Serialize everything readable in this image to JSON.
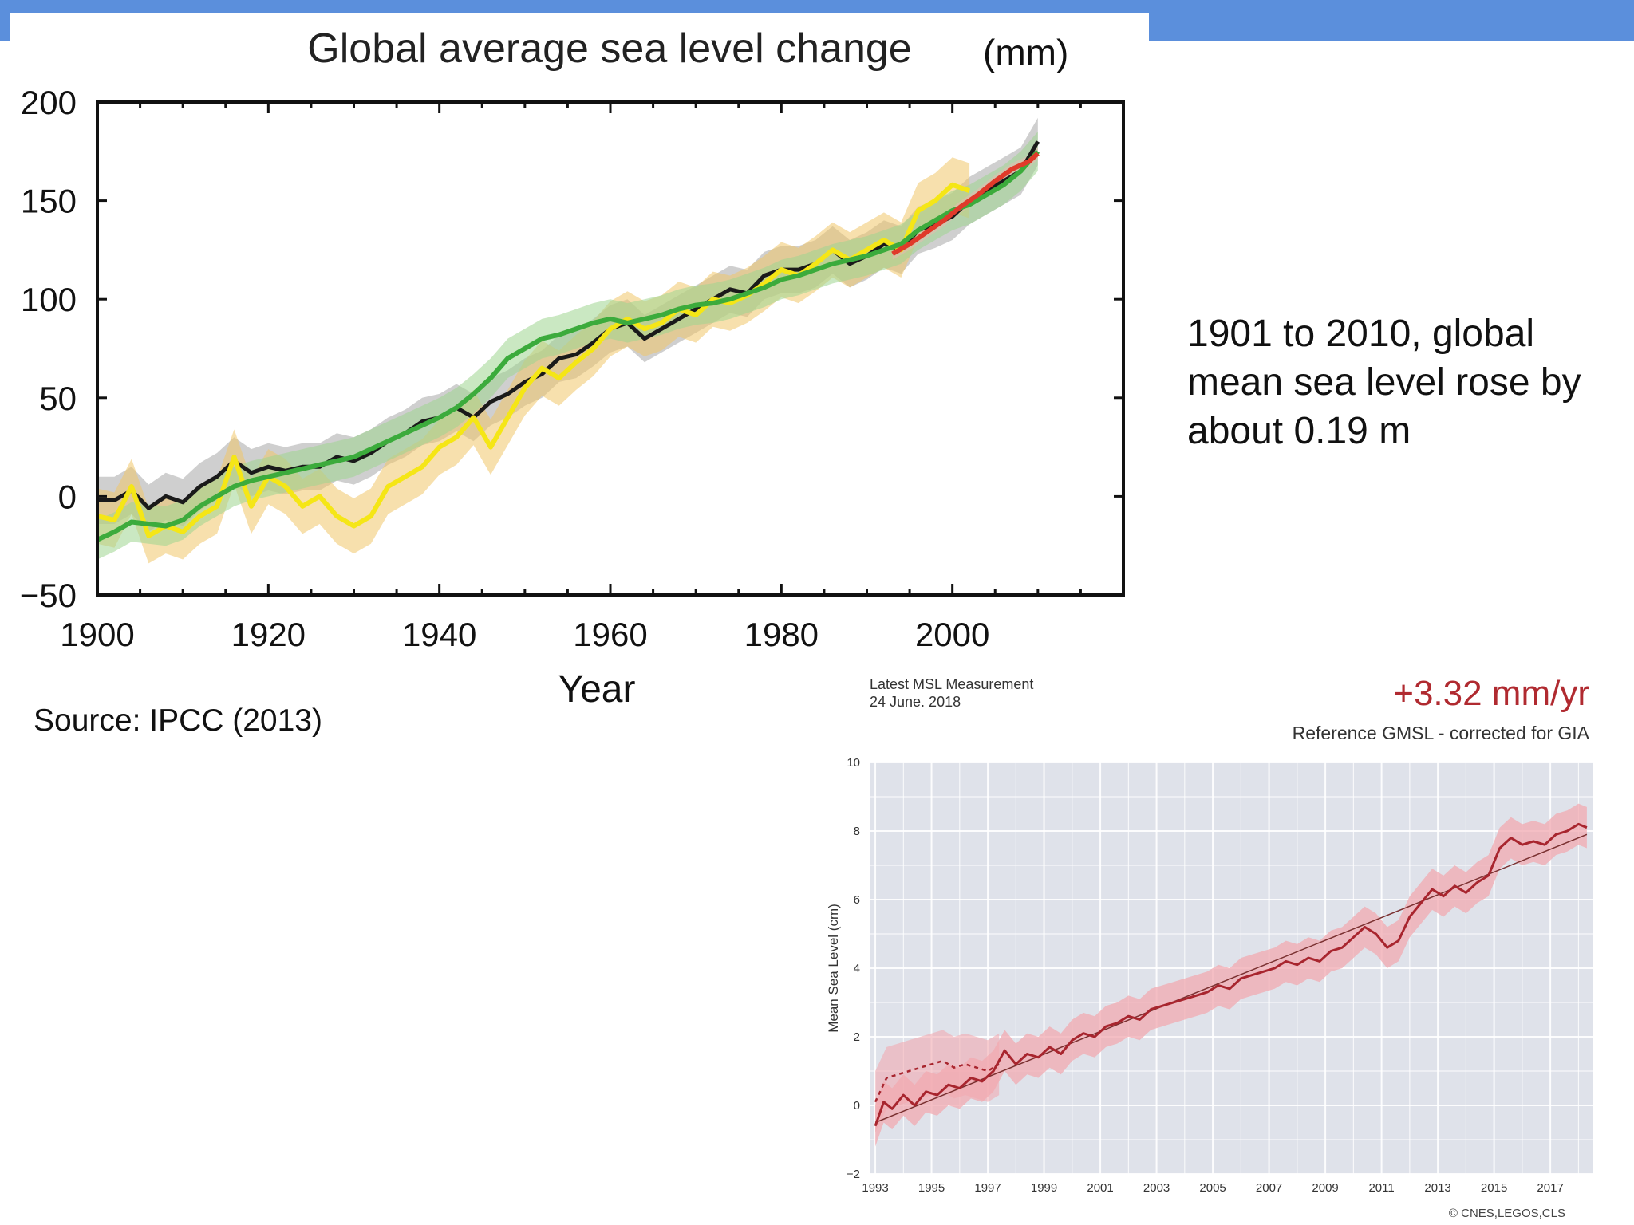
{
  "slide": {
    "note": "1901 to 2010, global mean sea level rose by about 0.19 m",
    "source": "Source: IPCC (2013)",
    "colors": {
      "topbar": "#5b8fdc"
    }
  },
  "chart_data": [
    {
      "type": "line",
      "title": "Global average sea level change",
      "unit": "(mm)",
      "xlabel": "Year",
      "ylabel": "",
      "xlim": [
        1900,
        2020
      ],
      "ylim": [
        -50,
        200
      ],
      "xticks": [
        1900,
        1920,
        1940,
        1960,
        1980,
        2000
      ],
      "yticks": [
        -50,
        0,
        50,
        100,
        150,
        200
      ],
      "grid": false,
      "series": [
        {
          "color": "#1a1a1a",
          "band_color": "#a8a8a8",
          "x": [
            1900,
            1902,
            1904,
            1906,
            1908,
            1910,
            1912,
            1914,
            1916,
            1918,
            1920,
            1922,
            1924,
            1926,
            1928,
            1930,
            1932,
            1934,
            1936,
            1938,
            1940,
            1942,
            1944,
            1946,
            1948,
            1950,
            1952,
            1954,
            1956,
            1958,
            1960,
            1962,
            1964,
            1966,
            1968,
            1970,
            1972,
            1974,
            1976,
            1978,
            1980,
            1982,
            1984,
            1986,
            1988,
            1990,
            1992,
            1994,
            1996,
            1998,
            2000,
            2002,
            2004,
            2006,
            2008,
            2010
          ],
          "y": [
            -2,
            -2,
            3,
            -6,
            0,
            -3,
            5,
            10,
            18,
            12,
            15,
            13,
            15,
            15,
            20,
            18,
            22,
            28,
            32,
            38,
            40,
            45,
            40,
            48,
            52,
            58,
            62,
            70,
            72,
            78,
            85,
            88,
            80,
            85,
            90,
            95,
            100,
            105,
            103,
            112,
            115,
            115,
            118,
            125,
            118,
            122,
            128,
            125,
            135,
            138,
            142,
            150,
            155,
            160,
            165,
            180
          ],
          "band": 12
        },
        {
          "color": "#f5e616",
          "band_color": "#f0c66a",
          "x": [
            1900,
            1902,
            1904,
            1906,
            1908,
            1910,
            1912,
            1914,
            1916,
            1918,
            1920,
            1922,
            1924,
            1926,
            1928,
            1930,
            1932,
            1934,
            1936,
            1938,
            1940,
            1942,
            1944,
            1946,
            1948,
            1950,
            1952,
            1954,
            1956,
            1958,
            1960,
            1962,
            1964,
            1966,
            1968,
            1970,
            1972,
            1974,
            1976,
            1978,
            1980,
            1982,
            1984,
            1986,
            1988,
            1990,
            1992,
            1994,
            1996,
            1998,
            2000,
            2002
          ],
          "y": [
            -10,
            -12,
            5,
            -20,
            -15,
            -18,
            -10,
            -5,
            20,
            -5,
            10,
            5,
            -5,
            0,
            -10,
            -15,
            -10,
            5,
            10,
            15,
            25,
            30,
            40,
            25,
            40,
            55,
            65,
            60,
            68,
            75,
            85,
            90,
            85,
            88,
            95,
            92,
            100,
            98,
            102,
            108,
            115,
            112,
            118,
            125,
            120,
            125,
            130,
            125,
            145,
            150,
            158,
            155
          ],
          "band": 14
        },
        {
          "color": "#3cab3c",
          "band_color": "#9fd68f",
          "x": [
            1900,
            1902,
            1904,
            1906,
            1908,
            1910,
            1912,
            1914,
            1916,
            1918,
            1920,
            1922,
            1924,
            1926,
            1928,
            1930,
            1932,
            1934,
            1936,
            1938,
            1940,
            1942,
            1944,
            1946,
            1948,
            1950,
            1952,
            1954,
            1956,
            1958,
            1960,
            1962,
            1964,
            1966,
            1968,
            1970,
            1972,
            1974,
            1976,
            1978,
            1980,
            1982,
            1984,
            1986,
            1988,
            1990,
            1992,
            1994,
            1996,
            1998,
            2000,
            2002,
            2004,
            2006,
            2008,
            2010
          ],
          "y": [
            -22,
            -18,
            -13,
            -14,
            -15,
            -12,
            -5,
            0,
            5,
            8,
            10,
            12,
            14,
            16,
            18,
            20,
            24,
            28,
            32,
            36,
            40,
            45,
            52,
            60,
            70,
            75,
            80,
            82,
            85,
            88,
            90,
            88,
            90,
            92,
            95,
            97,
            98,
            100,
            103,
            106,
            110,
            112,
            115,
            118,
            120,
            122,
            125,
            128,
            135,
            140,
            145,
            148,
            153,
            158,
            165,
            175
          ],
          "band": 10
        },
        {
          "color": "#e03a2a",
          "band_color": "#e8b9b0",
          "x": [
            1993,
            1995,
            1997,
            1999,
            2001,
            2003,
            2005,
            2007,
            2009,
            2010
          ],
          "y": [
            123,
            128,
            134,
            140,
            147,
            153,
            160,
            166,
            170,
            174
          ],
          "band": 3
        }
      ]
    },
    {
      "type": "line",
      "title": "",
      "header_left_1": "Latest MSL Measurement",
      "header_left_2": "24 June. 2018",
      "rate": "+3.32 mm/yr",
      "subtitle": "Reference GMSL - corrected for GIA",
      "ylabel": "Mean Sea Level (cm)",
      "xlabel": "",
      "credit": "© CNES,LEGOS,CLS",
      "xlim": [
        1992.8,
        2018.5
      ],
      "ylim": [
        -2,
        10
      ],
      "xticks": [
        1993,
        1995,
        1997,
        1999,
        2001,
        2003,
        2005,
        2007,
        2009,
        2011,
        2013,
        2015,
        2017
      ],
      "yticks": [
        -2,
        0,
        2,
        4,
        6,
        8,
        10
      ],
      "grid": true,
      "colors": {
        "line": "#a8252e",
        "band": "#f2aab0",
        "rate": "#b02a30",
        "background": "#dfe2ea",
        "trend": "#7a3030"
      },
      "series": {
        "x": [
          1993.0,
          1993.3,
          1993.6,
          1994.0,
          1994.4,
          1994.8,
          1995.2,
          1995.6,
          1996.0,
          1996.4,
          1996.8,
          1997.2,
          1997.6,
          1998.0,
          1998.4,
          1998.8,
          1999.2,
          1999.6,
          2000.0,
          2000.4,
          2000.8,
          2001.2,
          2001.6,
          2002.0,
          2002.4,
          2002.8,
          2003.2,
          2003.6,
          2004.0,
          2004.4,
          2004.8,
          2005.2,
          2005.6,
          2006.0,
          2006.4,
          2006.8,
          2007.2,
          2007.6,
          2008.0,
          2008.4,
          2008.8,
          2009.2,
          2009.6,
          2010.0,
          2010.4,
          2010.8,
          2011.2,
          2011.6,
          2012.0,
          2012.4,
          2012.8,
          2013.2,
          2013.6,
          2014.0,
          2014.4,
          2014.8,
          2015.2,
          2015.6,
          2016.0,
          2016.4,
          2016.8,
          2017.2,
          2017.6,
          2018.0,
          2018.3
        ],
        "y": [
          -0.6,
          0.1,
          -0.1,
          0.3,
          0.0,
          0.4,
          0.3,
          0.6,
          0.5,
          0.8,
          0.7,
          1.0,
          1.6,
          1.2,
          1.5,
          1.4,
          1.7,
          1.5,
          1.9,
          2.1,
          2.0,
          2.3,
          2.4,
          2.6,
          2.5,
          2.8,
          2.9,
          3.0,
          3.1,
          3.2,
          3.3,
          3.5,
          3.4,
          3.7,
          3.8,
          3.9,
          4.0,
          4.2,
          4.1,
          4.3,
          4.2,
          4.5,
          4.6,
          4.9,
          5.2,
          5.0,
          4.6,
          4.8,
          5.5,
          5.9,
          6.3,
          6.1,
          6.4,
          6.2,
          6.5,
          6.7,
          7.5,
          7.8,
          7.6,
          7.7,
          7.6,
          7.9,
          8.0,
          8.2,
          8.1
        ],
        "band": 0.6
      },
      "early_series": {
        "x": [
          1993.0,
          1993.4,
          1993.8,
          1994.2,
          1994.6,
          1995.0,
          1995.4,
          1995.8,
          1996.2,
          1996.6,
          1997.0,
          1997.4
        ],
        "y": [
          0.1,
          0.8,
          0.9,
          1.0,
          1.1,
          1.2,
          1.3,
          1.1,
          1.2,
          1.1,
          1.0,
          1.2
        ],
        "band": 0.9
      },
      "trend": {
        "x": [
          1993.0,
          2018.3
        ],
        "y": [
          -0.5,
          7.9
        ]
      }
    }
  ]
}
